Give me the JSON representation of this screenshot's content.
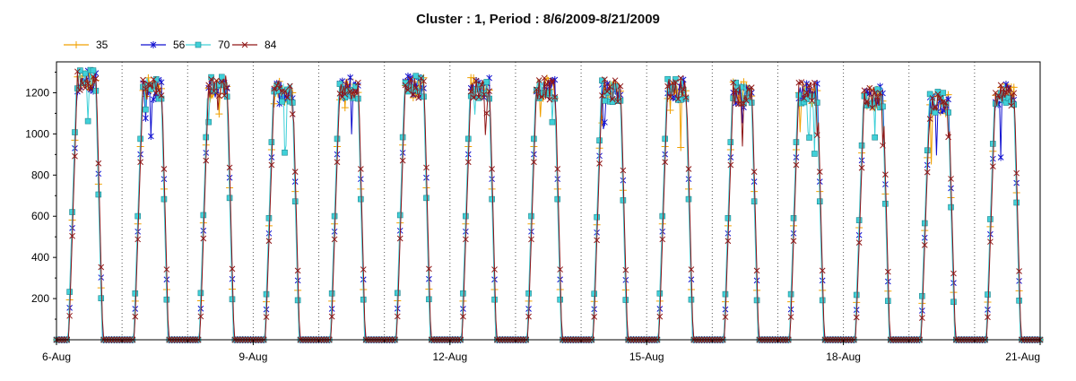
{
  "chart_data": {
    "type": "line",
    "title": "Cluster : 1, Period : 8/6/2009-8/21/2009",
    "xlabel": "",
    "ylabel": "",
    "xlim": [
      0,
      15
    ],
    "ylim": [
      0,
      1350
    ],
    "x_ticks": [
      {
        "value": 0,
        "label": "6-Aug"
      },
      {
        "value": 3,
        "label": "9-Aug"
      },
      {
        "value": 6,
        "label": "12-Aug"
      },
      {
        "value": 9,
        "label": "15-Aug"
      },
      {
        "value": 12,
        "label": "18-Aug"
      },
      {
        "value": 15,
        "label": "21-Aug"
      }
    ],
    "y_ticks": [
      200,
      400,
      600,
      800,
      1000,
      1200
    ],
    "grid": "dotted vertical lines at each day",
    "legend": {
      "placement": "top-left",
      "orientation": "horizontal"
    },
    "series": [
      {
        "name": "35",
        "color": "#f0a000",
        "marker": "plus"
      },
      {
        "name": "56",
        "color": "#1010d0",
        "marker": "asterisk"
      },
      {
        "name": "70",
        "color": "#40d0d8",
        "marker": "square"
      },
      {
        "name": "84",
        "color": "#901818",
        "marker": "x"
      }
    ],
    "daily_plateau": [
      {
        "day": "6-Aug",
        "peak": 1260,
        "night": 0
      },
      {
        "day": "7-Aug",
        "peak": 1220,
        "night": 0
      },
      {
        "day": "8-Aug",
        "peak": 1230,
        "night": 0
      },
      {
        "day": "9-Aug",
        "peak": 1200,
        "night": 0
      },
      {
        "day": "10-Aug",
        "peak": 1220,
        "night": 0
      },
      {
        "day": "11-Aug",
        "peak": 1230,
        "night": 0
      },
      {
        "day": "12-Aug",
        "peak": 1220,
        "night": 0
      },
      {
        "day": "13-Aug",
        "peak": 1220,
        "night": 0
      },
      {
        "day": "14-Aug",
        "peak": 1210,
        "night": 0
      },
      {
        "day": "15-Aug",
        "peak": 1220,
        "night": 0
      },
      {
        "day": "16-Aug",
        "peak": 1200,
        "night": 0
      },
      {
        "day": "17-Aug",
        "peak": 1200,
        "night": 0
      },
      {
        "day": "18-Aug",
        "peak": 1180,
        "night": 0
      },
      {
        "day": "19-Aug",
        "peak": 1150,
        "night": 0
      },
      {
        "day": "20-Aug",
        "peak": 1190,
        "night": 0
      }
    ]
  }
}
